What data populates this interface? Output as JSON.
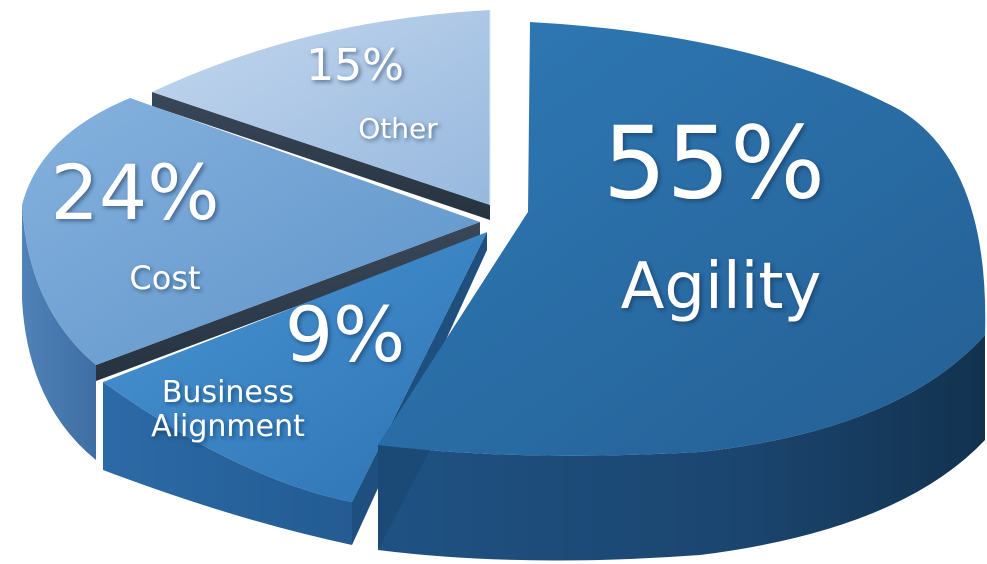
{
  "chart_data": {
    "type": "pie",
    "title": "",
    "slices": [
      {
        "label": "Agility",
        "value": 55,
        "percent_text": "55%",
        "color": "#2e74ad"
      },
      {
        "label": "Business\nAlignment",
        "value": 9,
        "percent_text": "9%",
        "color": "#3d86c6"
      },
      {
        "label": "Cost",
        "value": 24,
        "percent_text": "24%",
        "color": "#6d9fd2"
      },
      {
        "label": "Other",
        "value": 15,
        "percent_text": "15%",
        "color": "#a6c3e3"
      }
    ],
    "style": "3d-exploded"
  }
}
